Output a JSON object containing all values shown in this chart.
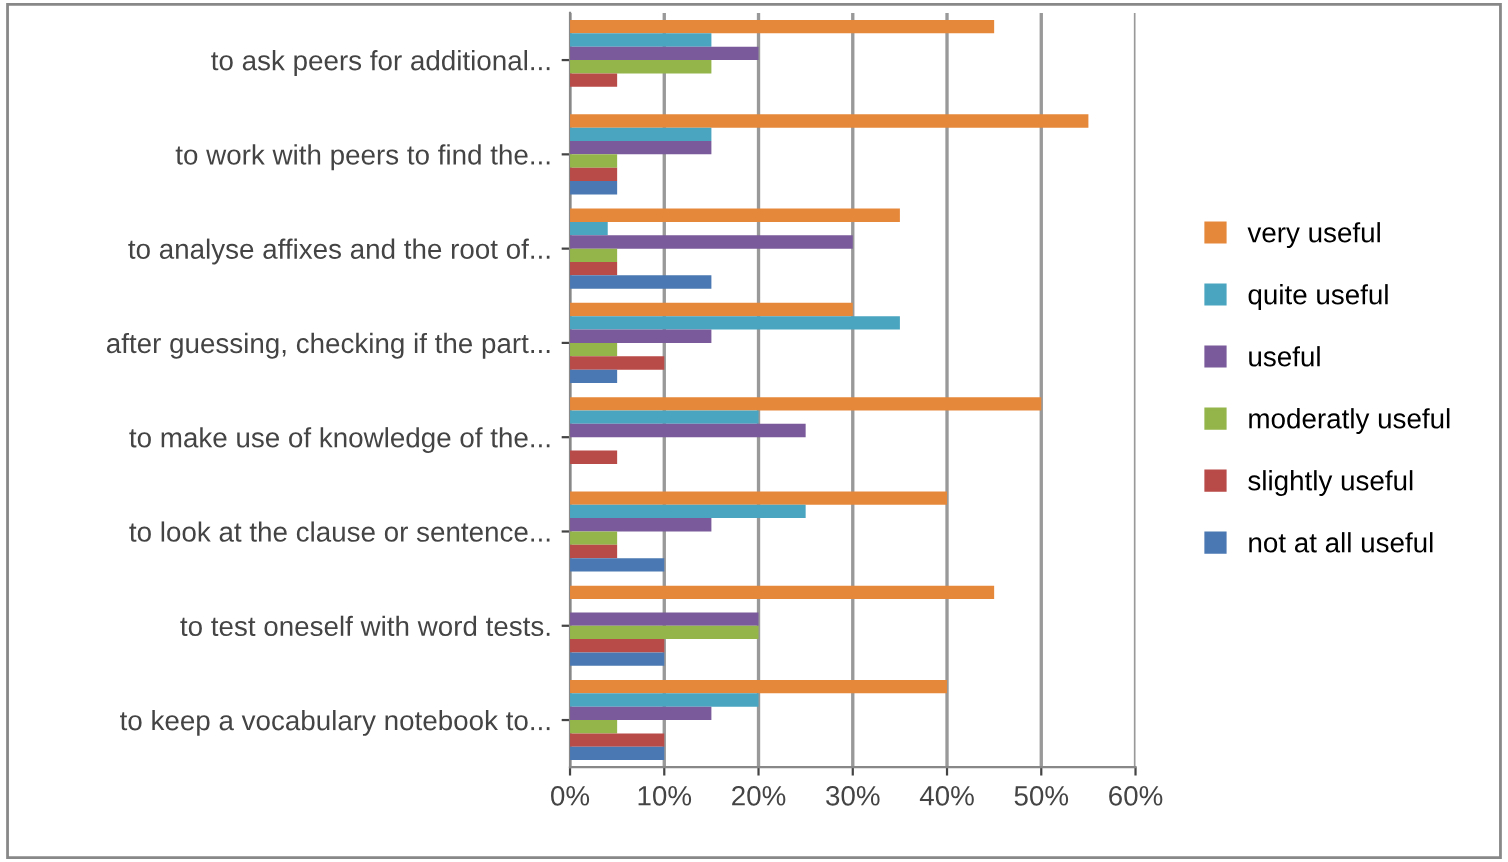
{
  "chart_data": {
    "type": "bar",
    "orientation": "horizontal",
    "categories": [
      "to ask peers for additional...",
      "to work with peers to find the...",
      "to analyse affixes and the root of...",
      "after guessing, checking if the part...",
      "to make use of knowledge of the...",
      "to look at the clause or sentence...",
      "to test oneself with word tests.",
      "to keep a vocabulary notebook to..."
    ],
    "series": [
      {
        "name": "very useful",
        "color": "#e6883a",
        "values": [
          45,
          55,
          35,
          30,
          50,
          40,
          45,
          40
        ]
      },
      {
        "name": "quite useful",
        "color": "#4aa5c0",
        "values": [
          15,
          15,
          4,
          35,
          20,
          25,
          0,
          20
        ]
      },
      {
        "name": "useful",
        "color": "#7a5a9a",
        "values": [
          20,
          15,
          30,
          15,
          25,
          15,
          20,
          15
        ]
      },
      {
        "name": "moderatly useful",
        "color": "#93b54a",
        "values": [
          15,
          5,
          5,
          5,
          0,
          5,
          20,
          5
        ]
      },
      {
        "name": "slightly useful",
        "color": "#b84a48",
        "values": [
          5,
          5,
          5,
          10,
          5,
          5,
          10,
          10
        ]
      },
      {
        "name": "not at all useful",
        "color": "#4a78b2",
        "values": [
          0,
          5,
          15,
          5,
          0,
          10,
          10,
          10
        ]
      }
    ],
    "xlim": [
      0,
      60
    ],
    "xticks": [
      {
        "value": 0,
        "label": "0%"
      },
      {
        "value": 10,
        "label": "10%"
      },
      {
        "value": 20,
        "label": "20%"
      },
      {
        "value": 30,
        "label": "30%"
      },
      {
        "value": 40,
        "label": "40%"
      },
      {
        "value": 50,
        "label": "50%"
      },
      {
        "value": 60,
        "label": "60%"
      }
    ],
    "grid": "x",
    "legend": "right"
  }
}
